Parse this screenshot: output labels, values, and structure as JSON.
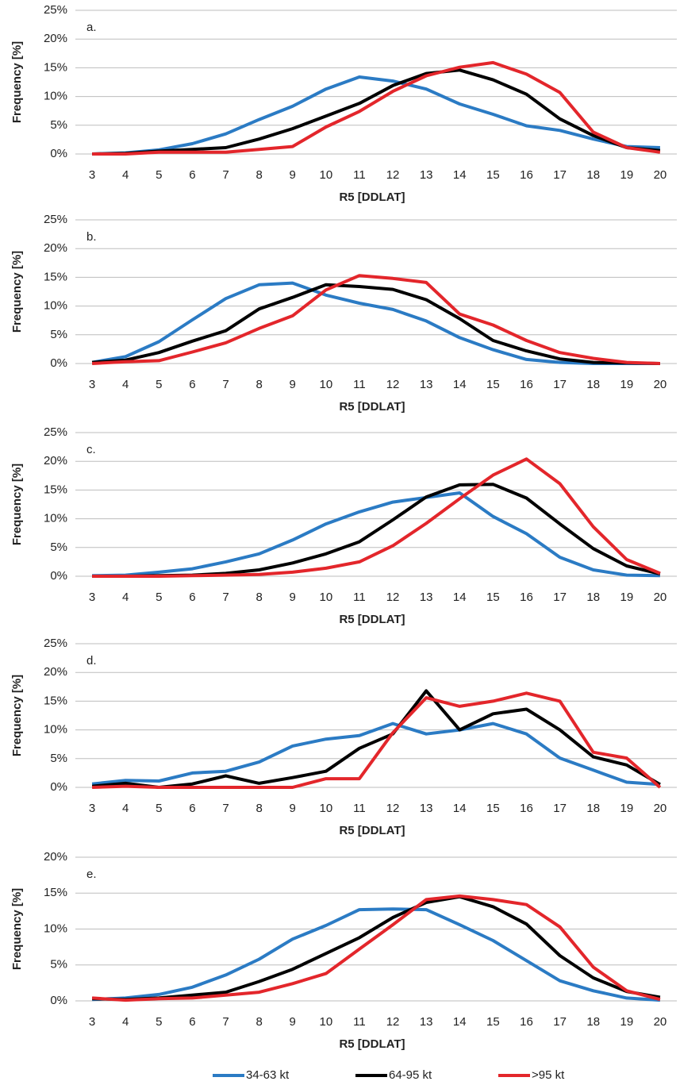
{
  "chart_data": [
    {
      "type": "line",
      "annotation": "a.",
      "ylabel": "Frequency [%]",
      "xlabel": "R5 [DDLAT]",
      "categories": [
        "3",
        "4",
        "5",
        "6",
        "7",
        "8",
        "9",
        "10",
        "11",
        "12",
        "13",
        "14",
        "15",
        "16",
        "17",
        "18",
        "19",
        "20"
      ],
      "ylim": [
        0,
        25
      ],
      "yticks": [
        {
          "value": 0,
          "label": "0%"
        },
        {
          "value": 5,
          "label": "5%"
        },
        {
          "value": 10,
          "label": "10%"
        },
        {
          "value": 15,
          "label": "15%"
        },
        {
          "value": 20,
          "label": "20%"
        },
        {
          "value": 25,
          "label": "25%"
        }
      ],
      "grid": true,
      "series": [
        {
          "name": "34-63 kt",
          "color": "#2b7bc4",
          "values": [
            0,
            0.2,
            0.7,
            1.8,
            3.5,
            6,
            8.3,
            11.3,
            13.4,
            12.7,
            11.3,
            8.7,
            6.9,
            4.9,
            4.1,
            2.6,
            1.3,
            1.1
          ]
        },
        {
          "name": "64-95 kt",
          "color": "#000000",
          "values": [
            0,
            0.1,
            0.5,
            0.8,
            1.1,
            2.6,
            4.4,
            6.6,
            8.8,
            11.9,
            14,
            14.6,
            12.9,
            10.4,
            6.1,
            3.2,
            1.1,
            0.6
          ]
        },
        {
          "name": ">95 kt",
          "color": "#e3262b",
          "values": [
            0,
            0,
            0.3,
            0.3,
            0.3,
            0.8,
            1.3,
            4.7,
            7.4,
            10.9,
            13.6,
            15.1,
            15.9,
            13.9,
            10.7,
            3.8,
            1.1,
            0.3
          ]
        }
      ]
    },
    {
      "type": "line",
      "annotation": "b.",
      "ylabel": "Frequency [%]",
      "xlabel": "R5 [DDLAT]",
      "categories": [
        "3",
        "4",
        "5",
        "6",
        "7",
        "8",
        "9",
        "10",
        "11",
        "12",
        "13",
        "14",
        "15",
        "16",
        "17",
        "18",
        "19",
        "20"
      ],
      "ylim": [
        0,
        25
      ],
      "yticks": [
        {
          "value": 0,
          "label": "0%"
        },
        {
          "value": 5,
          "label": "5%"
        },
        {
          "value": 10,
          "label": "10%"
        },
        {
          "value": 15,
          "label": "15%"
        },
        {
          "value": 20,
          "label": "20%"
        },
        {
          "value": 25,
          "label": "25%"
        }
      ],
      "grid": true,
      "series": [
        {
          "color": "#2b7bc4",
          "values": [
            0.2,
            1.2,
            3.8,
            7.6,
            11.3,
            13.7,
            14,
            11.9,
            10.5,
            9.4,
            7.4,
            4.5,
            2.4,
            0.7,
            0.2,
            0,
            0,
            0
          ]
        },
        {
          "color": "#000000",
          "values": [
            0.2,
            0.6,
            1.9,
            3.9,
            5.7,
            9.5,
            11.5,
            13.7,
            13.4,
            12.9,
            11.1,
            7.8,
            4,
            2.2,
            0.8,
            0.2,
            0.1,
            0
          ]
        },
        {
          "color": "#e3262b",
          "values": [
            0,
            0.3,
            0.5,
            2,
            3.6,
            6.1,
            8.3,
            12.8,
            15.3,
            14.8,
            14.1,
            8.6,
            6.7,
            4,
            1.9,
            0.9,
            0.2,
            0
          ]
        }
      ]
    },
    {
      "type": "line",
      "annotation": "c.",
      "ylabel": "Frequency [%]",
      "xlabel": "R5 [DDLAT]",
      "categories": [
        "3",
        "4",
        "5",
        "6",
        "7",
        "8",
        "9",
        "10",
        "11",
        "12",
        "13",
        "14",
        "15",
        "16",
        "17",
        "18",
        "19",
        "20"
      ],
      "ylim": [
        0,
        25
      ],
      "yticks": [
        {
          "value": 0,
          "label": "0%"
        },
        {
          "value": 5,
          "label": "5%"
        },
        {
          "value": 10,
          "label": "10%"
        },
        {
          "value": 15,
          "label": "15%"
        },
        {
          "value": 20,
          "label": "20%"
        },
        {
          "value": 25,
          "label": "25%"
        }
      ],
      "grid": true,
      "series": [
        {
          "color": "#2b7bc4",
          "values": [
            0.1,
            0.2,
            0.7,
            1.3,
            2.5,
            3.9,
            6.3,
            9.1,
            11.2,
            12.9,
            13.7,
            14.5,
            10.4,
            7.4,
            3.3,
            1.1,
            0.2,
            0.1
          ]
        },
        {
          "color": "#000000",
          "values": [
            0,
            0,
            0.1,
            0.2,
            0.5,
            1.1,
            2.3,
            3.9,
            6,
            9.8,
            13.8,
            15.9,
            16,
            13.6,
            9.1,
            4.8,
            1.8,
            0.4
          ]
        },
        {
          "color": "#e3262b",
          "values": [
            0,
            0,
            0,
            0.1,
            0.2,
            0.3,
            0.7,
            1.4,
            2.5,
            5.3,
            9.2,
            13.5,
            17.6,
            20.4,
            16.1,
            8.6,
            2.9,
            0.5
          ]
        }
      ]
    },
    {
      "type": "line",
      "annotation": "d.",
      "ylabel": "Frequency [%]",
      "xlabel": "R5 [DDLAT]",
      "categories": [
        "3",
        "4",
        "5",
        "6",
        "7",
        "8",
        "9",
        "10",
        "11",
        "12",
        "13",
        "14",
        "15",
        "16",
        "17",
        "18",
        "19",
        "20"
      ],
      "ylim": [
        0,
        25
      ],
      "yticks": [
        {
          "value": 0,
          "label": "0%"
        },
        {
          "value": 5,
          "label": "5%"
        },
        {
          "value": 10,
          "label": "10%"
        },
        {
          "value": 15,
          "label": "15%"
        },
        {
          "value": 20,
          "label": "20%"
        },
        {
          "value": 25,
          "label": "25%"
        }
      ],
      "grid": true,
      "series": [
        {
          "color": "#2b7bc4",
          "values": [
            0.6,
            1.2,
            1.1,
            2.5,
            2.8,
            4.4,
            7.2,
            8.4,
            9,
            11.1,
            9.3,
            10,
            11.1,
            9.3,
            5.1,
            3,
            0.9,
            0.5
          ]
        },
        {
          "color": "#000000",
          "values": [
            0.2,
            0.7,
            0,
            0.6,
            2,
            0.7,
            1.7,
            2.8,
            6.8,
            9.3,
            16.8,
            10,
            12.8,
            13.6,
            10,
            5.3,
            3.9,
            0.5
          ]
        },
        {
          "color": "#e3262b",
          "values": [
            0,
            0.2,
            0,
            0,
            0,
            0,
            0,
            1.5,
            1.5,
            9.5,
            15.6,
            14.1,
            15,
            16.4,
            15,
            6.1,
            5.1,
            0
          ]
        }
      ]
    },
    {
      "type": "line",
      "annotation": "e.",
      "ylabel": "Frequency [%]",
      "xlabel": "R5 [DDLAT]",
      "categories": [
        "3",
        "4",
        "5",
        "6",
        "7",
        "8",
        "9",
        "10",
        "11",
        "12",
        "13",
        "14",
        "15",
        "16",
        "17",
        "18",
        "19",
        "20"
      ],
      "ylim": [
        0,
        20
      ],
      "yticks": [
        {
          "value": 0,
          "label": "0%"
        },
        {
          "value": 5,
          "label": "5%"
        },
        {
          "value": 10,
          "label": "10%"
        },
        {
          "value": 15,
          "label": "15%"
        },
        {
          "value": 20,
          "label": "20%"
        }
      ],
      "grid": true,
      "series": [
        {
          "color": "#2b7bc4",
          "values": [
            0.2,
            0.4,
            0.9,
            1.9,
            3.6,
            5.8,
            8.6,
            10.5,
            12.7,
            12.8,
            12.7,
            10.6,
            8.4,
            5.6,
            2.8,
            1.4,
            0.4,
            0.1
          ]
        },
        {
          "color": "#000000",
          "values": [
            0.3,
            0.2,
            0.4,
            0.8,
            1.2,
            2.7,
            4.4,
            6.6,
            8.8,
            11.6,
            13.7,
            14.5,
            13.1,
            10.7,
            6.3,
            3.2,
            1.3,
            0.5
          ]
        },
        {
          "color": "#e3262b",
          "values": [
            0.4,
            0.1,
            0.3,
            0.4,
            0.8,
            1.2,
            2.4,
            3.8,
            7.2,
            10.6,
            14.1,
            14.6,
            14.1,
            13.4,
            10.3,
            4.7,
            1.4,
            0.2
          ]
        }
      ]
    }
  ]
}
